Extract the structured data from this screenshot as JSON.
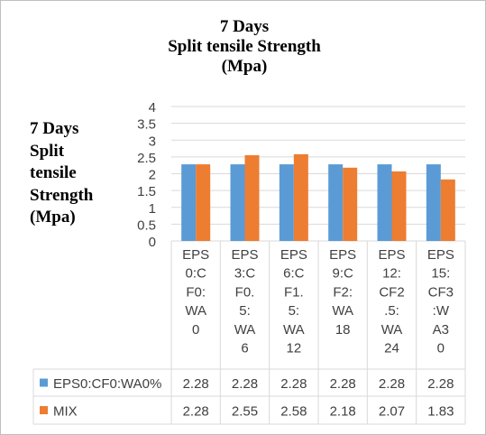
{
  "chart_data": {
    "type": "bar",
    "title_lines": [
      "7 Days",
      "Split tensile Strength",
      "(Mpa)"
    ],
    "ylabel_lines": [
      "7 Days",
      "Split",
      "tensile",
      "Strength",
      "(Mpa)"
    ],
    "xlabel": "",
    "ylim": [
      0,
      4
    ],
    "yticks": [
      "0",
      "0.5",
      "1",
      "1.5",
      "2",
      "2.5",
      "3",
      "3.5",
      "4"
    ],
    "grid": true,
    "legend_placement": "data-table",
    "categories": [
      "EPS0:CF0:WA0",
      "EPS3:CF0.5:WA6",
      "EPS6:CF1.5:WA12",
      "EPS9:CF2:WA18",
      "EPS12:CF2.5:WA24",
      "EPS15:CF3:WA30"
    ],
    "category_label_lines": [
      [
        "EPS",
        "0:C",
        "F0:",
        "WA",
        "0"
      ],
      [
        "EPS",
        "3:C",
        "F0.",
        "5:",
        "WA",
        "6"
      ],
      [
        "EPS",
        "6:C",
        "F1.",
        "5:",
        "WA",
        "12"
      ],
      [
        "EPS",
        "9:C",
        "F2:",
        "WA",
        "18"
      ],
      [
        "EPS",
        "12:",
        "CF2",
        ".5:",
        "WA",
        "24"
      ],
      [
        "EPS",
        "15:",
        "CF3",
        ":W",
        "A3",
        "0"
      ]
    ],
    "series": [
      {
        "name": "EPS0:CF0:WA0%",
        "color": "#5B9BD5",
        "values": [
          2.28,
          2.28,
          2.28,
          2.28,
          2.28,
          2.28
        ],
        "value_labels": [
          "2.28",
          "2.28",
          "2.28",
          "2.28",
          "2.28",
          "2.28"
        ]
      },
      {
        "name": "MIX",
        "color": "#ED7D31",
        "values": [
          2.28,
          2.55,
          2.58,
          2.18,
          2.07,
          1.83
        ],
        "value_labels": [
          "2.28",
          "2.55",
          "2.58",
          "2.18",
          "2.07",
          "1.83"
        ]
      }
    ]
  }
}
